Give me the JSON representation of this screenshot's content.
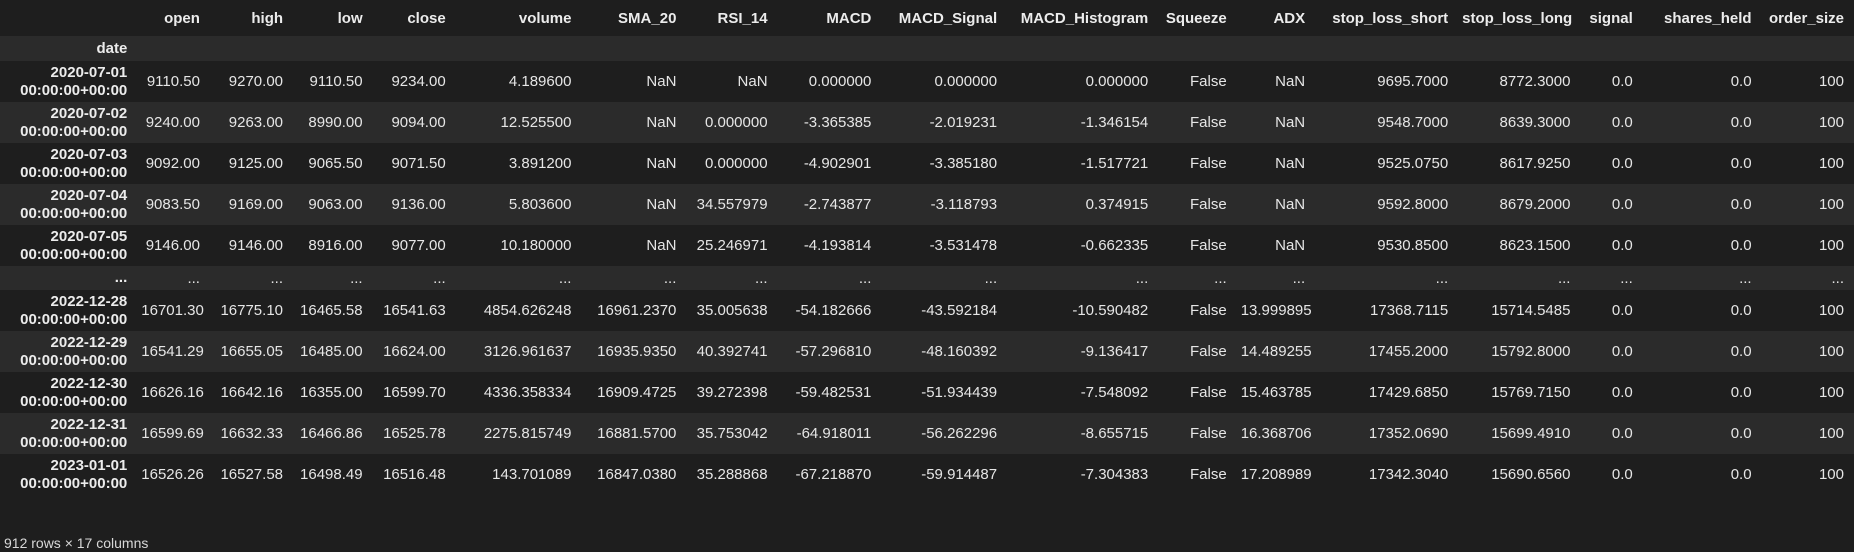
{
  "table": {
    "columns": [
      "open",
      "high",
      "low",
      "close",
      "volume",
      "SMA_20",
      "RSI_14",
      "MACD",
      "MACD_Signal",
      "MACD_Histogram",
      "Squeeze",
      "ADX",
      "stop_loss_short",
      "stop_loss_long",
      "signal",
      "shares_held",
      "order_size"
    ],
    "index_name": "date",
    "rows": [
      {
        "date": [
          "2020-07-01",
          "00:00:00+00:00"
        ],
        "values": [
          "9110.50",
          "9270.00",
          "9110.50",
          "9234.00",
          "4.189600",
          "NaN",
          "NaN",
          "0.000000",
          "0.000000",
          "0.000000",
          "False",
          "NaN",
          "9695.7000",
          "8772.3000",
          "0.0",
          "0.0",
          "100"
        ]
      },
      {
        "date": [
          "2020-07-02",
          "00:00:00+00:00"
        ],
        "values": [
          "9240.00",
          "9263.00",
          "8990.00",
          "9094.00",
          "12.525500",
          "NaN",
          "0.000000",
          "-3.365385",
          "-2.019231",
          "-1.346154",
          "False",
          "NaN",
          "9548.7000",
          "8639.3000",
          "0.0",
          "0.0",
          "100"
        ]
      },
      {
        "date": [
          "2020-07-03",
          "00:00:00+00:00"
        ],
        "values": [
          "9092.00",
          "9125.00",
          "9065.50",
          "9071.50",
          "3.891200",
          "NaN",
          "0.000000",
          "-4.902901",
          "-3.385180",
          "-1.517721",
          "False",
          "NaN",
          "9525.0750",
          "8617.9250",
          "0.0",
          "0.0",
          "100"
        ]
      },
      {
        "date": [
          "2020-07-04",
          "00:00:00+00:00"
        ],
        "values": [
          "9083.50",
          "9169.00",
          "9063.00",
          "9136.00",
          "5.803600",
          "NaN",
          "34.557979",
          "-2.743877",
          "-3.118793",
          "0.374915",
          "False",
          "NaN",
          "9592.8000",
          "8679.2000",
          "0.0",
          "0.0",
          "100"
        ]
      },
      {
        "date": [
          "2020-07-05",
          "00:00:00+00:00"
        ],
        "values": [
          "9146.00",
          "9146.00",
          "8916.00",
          "9077.00",
          "10.180000",
          "NaN",
          "25.246971",
          "-4.193814",
          "-3.531478",
          "-0.662335",
          "False",
          "NaN",
          "9530.8500",
          "8623.1500",
          "0.0",
          "0.0",
          "100"
        ]
      },
      {
        "date": [
          "...",
          ""
        ],
        "values": [
          "...",
          "...",
          "...",
          "...",
          "...",
          "...",
          "...",
          "...",
          "...",
          "...",
          "...",
          "...",
          "...",
          "...",
          "...",
          "...",
          "..."
        ],
        "ellipsis": true
      },
      {
        "date": [
          "2022-12-28",
          "00:00:00+00:00"
        ],
        "values": [
          "16701.30",
          "16775.10",
          "16465.58",
          "16541.63",
          "4854.626248",
          "16961.2370",
          "35.005638",
          "-54.182666",
          "-43.592184",
          "-10.590482",
          "False",
          "13.999895",
          "17368.7115",
          "15714.5485",
          "0.0",
          "0.0",
          "100"
        ]
      },
      {
        "date": [
          "2022-12-29",
          "00:00:00+00:00"
        ],
        "values": [
          "16541.29",
          "16655.05",
          "16485.00",
          "16624.00",
          "3126.961637",
          "16935.9350",
          "40.392741",
          "-57.296810",
          "-48.160392",
          "-9.136417",
          "False",
          "14.489255",
          "17455.2000",
          "15792.8000",
          "0.0",
          "0.0",
          "100"
        ]
      },
      {
        "date": [
          "2022-12-30",
          "00:00:00+00:00"
        ],
        "values": [
          "16626.16",
          "16642.16",
          "16355.00",
          "16599.70",
          "4336.358334",
          "16909.4725",
          "39.272398",
          "-59.482531",
          "-51.934439",
          "-7.548092",
          "False",
          "15.463785",
          "17429.6850",
          "15769.7150",
          "0.0",
          "0.0",
          "100"
        ]
      },
      {
        "date": [
          "2022-12-31",
          "00:00:00+00:00"
        ],
        "values": [
          "16599.69",
          "16632.33",
          "16466.86",
          "16525.78",
          "2275.815749",
          "16881.5700",
          "35.753042",
          "-64.918011",
          "-56.262296",
          "-8.655715",
          "False",
          "16.368706",
          "17352.0690",
          "15699.4910",
          "0.0",
          "0.0",
          "100"
        ]
      },
      {
        "date": [
          "2023-01-01",
          "00:00:00+00:00"
        ],
        "values": [
          "16526.26",
          "16527.58",
          "16498.49",
          "16516.48",
          "143.701089",
          "16847.0380",
          "35.288868",
          "-67.218870",
          "-59.914487",
          "-7.304383",
          "False",
          "17.208989",
          "17342.3040",
          "15690.6560",
          "0.0",
          "0.0",
          "100"
        ]
      }
    ],
    "footer": "912 rows × 17 columns"
  },
  "colors": {
    "background": "#1e1e1e",
    "stripe": "#2b2b2b",
    "text": "#e6e6e6"
  }
}
